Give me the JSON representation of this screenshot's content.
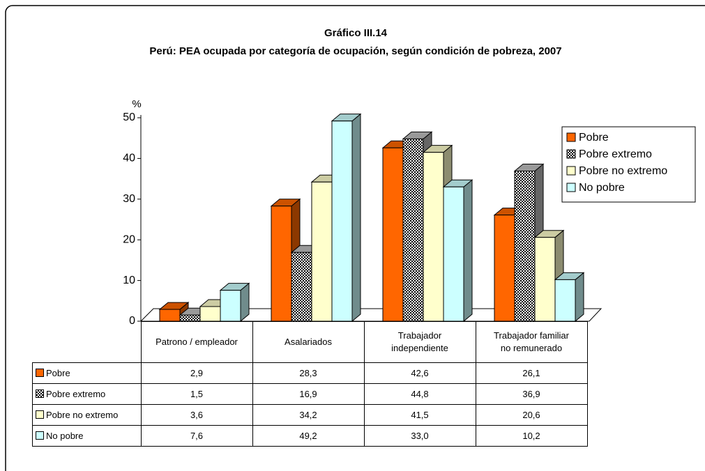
{
  "chart_data": {
    "type": "bar3d",
    "title": "Gráfico III.14",
    "subtitle": "Perú: PEA ocupada por categoría de ocupación, según condición de pobreza, 2007",
    "y_axis_label": "%",
    "categories": [
      "Patrono / empleador",
      "Asalariados",
      "Trabajador independiente",
      "Trabajador familiar no remunerado"
    ],
    "series": [
      {
        "name": "Pobre",
        "color": "#ff6600",
        "pattern": false,
        "values": [
          2.9,
          28.3,
          42.6,
          26.1
        ],
        "value_labels": [
          "2,9",
          "28,3",
          "42,6",
          "26,1"
        ]
      },
      {
        "name": "Pobre extremo",
        "color": "#808080",
        "pattern": true,
        "values": [
          1.5,
          16.9,
          44.8,
          36.9
        ],
        "value_labels": [
          "1,5",
          "16,9",
          "44,8",
          "36,9"
        ]
      },
      {
        "name": "Pobre no extremo",
        "color": "#ffffcc",
        "pattern": false,
        "values": [
          3.6,
          34.2,
          41.5,
          20.6
        ],
        "value_labels": [
          "3,6",
          "34,2",
          "41,5",
          "20,6"
        ]
      },
      {
        "name": "No pobre",
        "color": "#ccffff",
        "pattern": false,
        "values": [
          7.6,
          49.2,
          33.0,
          10.2
        ],
        "value_labels": [
          "7,6",
          "49,2",
          "33,0",
          "10,2"
        ]
      }
    ],
    "ylim": [
      0,
      50
    ],
    "yticks": [
      0,
      10,
      20,
      30,
      40,
      50
    ],
    "legend": "right"
  }
}
